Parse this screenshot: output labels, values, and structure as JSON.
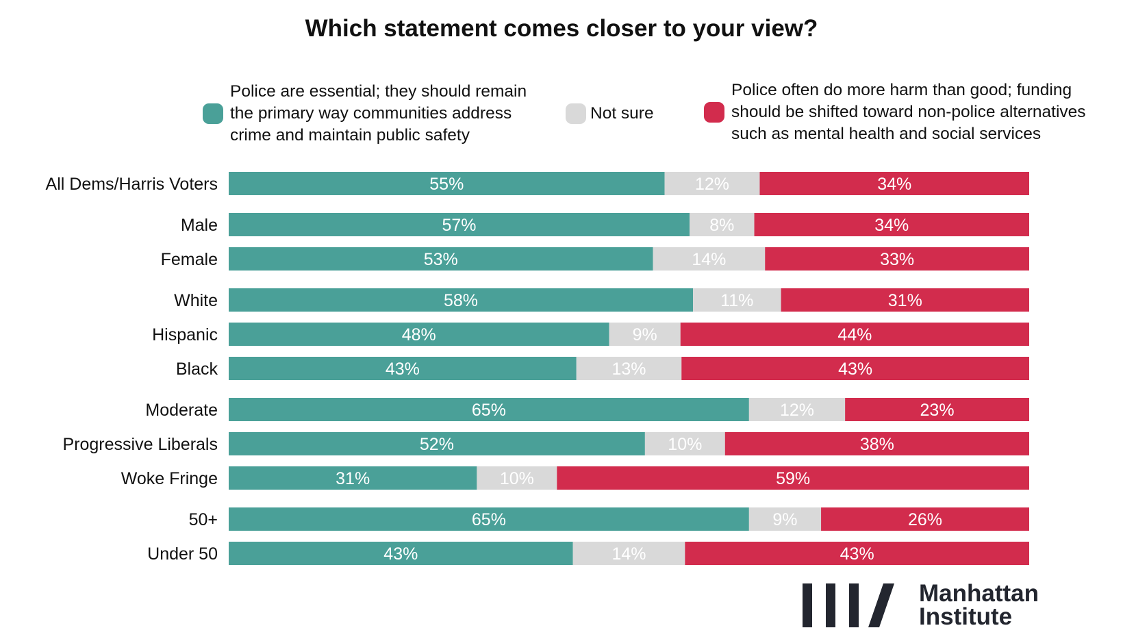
{
  "chart_data": {
    "type": "bar",
    "orientation": "horizontal",
    "stacked": true,
    "title": "Which statement comes closer to your view?",
    "xlabel": "",
    "ylabel": "",
    "xlim": [
      0,
      100
    ],
    "grid": false,
    "legend_position": "top",
    "categories": [
      "All Dems/Harris Voters",
      "Male",
      "Female",
      "White",
      "Hispanic",
      "Black",
      "Moderate",
      "Progressive Liberals",
      "Woke Fringe",
      "50+",
      "Under 50"
    ],
    "groups": [
      [
        0
      ],
      [
        1,
        2
      ],
      [
        3,
        4,
        5
      ],
      [
        6,
        7,
        8
      ],
      [
        9,
        10
      ]
    ],
    "series": [
      {
        "name": "Police are essential; they should remain the primary way communities address crime and maintain public safety",
        "color": "#4aa098",
        "values": [
          55,
          57,
          53,
          58,
          48,
          43,
          65,
          52,
          31,
          65,
          43
        ]
      },
      {
        "name": "Not sure",
        "color": "#d9d9d9",
        "values": [
          12,
          8,
          14,
          11,
          9,
          13,
          12,
          10,
          10,
          9,
          14
        ]
      },
      {
        "name": "Police often do more harm than good; funding should be shifted toward non-police alternatives such as mental health and social services",
        "color": "#d22c4d",
        "values": [
          34,
          34,
          33,
          31,
          44,
          43,
          23,
          38,
          59,
          26,
          43
        ]
      }
    ]
  },
  "legend": {
    "items": [
      {
        "lines": [
          "Police are essential; they should remain",
          "the primary way communities address",
          "crime and maintain public safety"
        ],
        "color": "#4aa098"
      },
      {
        "lines": [
          "Not sure"
        ],
        "color": "#d9d9d9"
      },
      {
        "lines": [
          "Police often do more harm than good; funding",
          "should be shifted toward non-police alternatives",
          "such as mental health and social services"
        ],
        "color": "#d22c4d"
      }
    ]
  },
  "logo": {
    "line1": "Manhattan",
    "line2": "Institute"
  }
}
